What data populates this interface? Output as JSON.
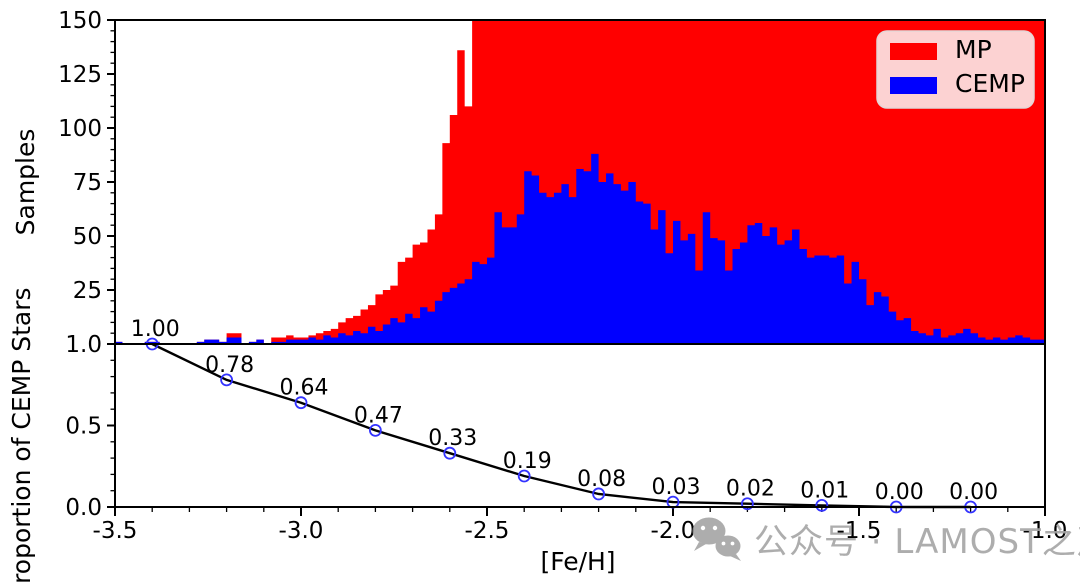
{
  "figure": {
    "xlabel": "[Fe/H]",
    "top_panel_ylabel": "Samples",
    "bottom_panel_ylabel": "Proportion of CEMP Stars"
  },
  "legend": {
    "items": [
      {
        "label": "MP",
        "color": "#ff0000"
      },
      {
        "label": "CEMP",
        "color": "#0000ff"
      }
    ],
    "background": "#fcd2d2",
    "border": "#e3d6d6"
  },
  "watermark": {
    "icon": "wechat-icon",
    "text": "公众号 · LAMOST之声",
    "color": "#a5a5a5"
  },
  "chart_data": [
    {
      "type": "bar",
      "panel": "top",
      "title": "",
      "ylabel": "Samples",
      "xlim": [
        -3.5,
        -1.0
      ],
      "ylim": [
        0,
        150
      ],
      "yticks": [
        25,
        50,
        75,
        100,
        125,
        150
      ],
      "ytick_minor_step": 5,
      "grid": false,
      "legend_position": "upper right",
      "bin_start": -3.5,
      "bin_width": 0.02,
      "clip_note": "MP counts exceed the y-axis maximum and are shown clipped at 150 for [Fe/H] greater than about -2.52",
      "series": [
        {
          "name": "MP",
          "color": "#ff0000",
          "values": [
            1,
            0,
            0,
            0,
            1,
            1,
            0,
            0,
            0,
            0,
            0,
            1,
            2,
            2,
            1,
            5,
            5,
            0,
            1,
            2,
            0,
            3,
            3,
            4,
            3,
            3,
            4,
            5,
            6,
            7,
            10,
            12,
            13,
            16,
            18,
            23,
            25,
            27,
            38,
            40,
            46,
            47,
            53,
            60,
            93,
            106,
            136,
            110,
            150,
            150,
            150,
            150,
            150,
            150,
            150,
            150,
            150,
            150,
            150,
            150,
            150,
            150,
            150,
            150,
            150,
            150,
            150,
            150,
            150,
            150,
            150,
            150,
            150,
            150,
            150,
            150,
            150,
            150,
            150,
            150,
            150,
            150,
            150,
            150,
            150,
            150,
            150,
            150,
            150,
            150,
            150,
            150,
            150,
            150,
            150,
            150,
            150,
            150,
            150,
            150,
            150,
            150,
            150,
            150,
            150,
            150,
            150,
            150,
            150,
            150,
            150,
            150,
            150,
            150,
            150,
            150,
            150,
            150,
            150,
            150,
            150,
            150,
            150,
            150,
            150
          ]
        },
        {
          "name": "CEMP",
          "color": "#0000ff",
          "values": [
            1,
            0,
            0,
            0,
            1,
            1,
            0,
            0,
            0,
            0,
            0,
            1,
            2,
            2,
            1,
            3,
            3,
            0,
            1,
            2,
            0,
            1,
            1,
            2,
            2,
            2,
            3,
            2,
            4,
            3,
            5,
            4,
            6,
            5,
            8,
            6,
            9,
            12,
            10,
            14,
            12,
            17,
            15,
            20,
            24,
            26,
            28,
            30,
            38,
            37,
            40,
            61,
            54,
            54,
            60,
            80,
            78,
            70,
            68,
            70,
            74,
            68,
            81,
            80,
            88,
            75,
            79,
            74,
            71,
            75,
            66,
            65,
            53,
            62,
            42,
            57,
            48,
            51,
            34,
            61,
            49,
            48,
            34,
            44,
            47,
            55,
            56,
            50,
            54,
            46,
            48,
            53,
            44,
            40,
            41,
            41,
            40,
            41,
            28,
            38,
            30,
            18,
            24,
            22,
            15,
            11,
            12,
            6,
            5,
            4,
            7,
            3,
            4,
            5,
            7,
            5,
            3,
            2,
            3,
            2,
            3,
            4,
            3,
            2,
            2
          ]
        }
      ]
    },
    {
      "type": "line",
      "panel": "bottom",
      "ylabel": "Proportion of CEMP Stars",
      "xlabel": "[Fe/H]",
      "xlim": [
        -3.5,
        -1.0
      ],
      "ylim": [
        0,
        1
      ],
      "yticks": [
        0.0,
        0.5,
        1.0
      ],
      "ytick_minor_step": 0.1,
      "xticks": [
        -3.5,
        -3.0,
        -2.5,
        -2.0,
        -1.5,
        -1.0
      ],
      "xtick_minor_step": 0.1,
      "grid": false,
      "x": [
        -3.4,
        -3.2,
        -3.0,
        -2.8,
        -2.6,
        -2.4,
        -2.2,
        -2.0,
        -1.8,
        -1.6,
        -1.4,
        -1.2
      ],
      "y": [
        1.0,
        0.78,
        0.64,
        0.47,
        0.33,
        0.19,
        0.08,
        0.03,
        0.02,
        0.01,
        0.0,
        0.0
      ],
      "point_labels": [
        "1.00",
        "0.78",
        "0.64",
        "0.47",
        "0.33",
        "0.19",
        "0.08",
        "0.03",
        "0.02",
        "0.01",
        "0.00",
        "0.00"
      ],
      "line_color": "#000000",
      "marker": "open-circle",
      "marker_color": "#3333ff"
    }
  ]
}
